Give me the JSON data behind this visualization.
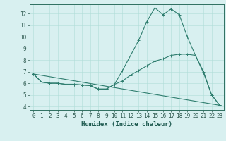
{
  "title": "",
  "xlabel": "Humidex (Indice chaleur)",
  "bg_color": "#d8f0f0",
  "line_color": "#2e7d6e",
  "xlim": [
    -0.5,
    23.5
  ],
  "ylim": [
    3.7,
    12.8
  ],
  "yticks": [
    4,
    5,
    6,
    7,
    8,
    9,
    10,
    11,
    12
  ],
  "xticks": [
    0,
    1,
    2,
    3,
    4,
    5,
    6,
    7,
    8,
    9,
    10,
    11,
    12,
    13,
    14,
    15,
    16,
    17,
    18,
    19,
    20,
    21,
    22,
    23
  ],
  "line1_x": [
    0,
    1,
    2,
    3,
    4,
    5,
    6,
    7,
    8,
    9,
    10,
    11,
    12,
    13,
    14,
    15,
    16,
    17,
    18,
    19,
    20,
    21,
    22,
    23
  ],
  "line1_y": [
    6.8,
    6.1,
    6.0,
    6.0,
    5.9,
    5.9,
    5.85,
    5.8,
    5.5,
    5.5,
    5.9,
    7.1,
    8.4,
    9.7,
    11.3,
    12.5,
    11.9,
    12.4,
    11.9,
    10.0,
    8.4,
    6.9,
    5.0,
    4.1
  ],
  "line2_x": [
    0,
    1,
    2,
    3,
    4,
    5,
    6,
    7,
    8,
    9,
    10,
    11,
    12,
    13,
    14,
    15,
    16,
    17,
    18,
    19,
    20,
    21,
    22,
    23
  ],
  "line2_y": [
    6.8,
    6.1,
    6.0,
    6.0,
    5.9,
    5.9,
    5.85,
    5.8,
    5.5,
    5.5,
    5.9,
    6.2,
    6.7,
    7.1,
    7.5,
    7.9,
    8.1,
    8.4,
    8.5,
    8.5,
    8.4,
    7.0,
    5.0,
    4.1
  ],
  "line3_x": [
    0,
    23
  ],
  "line3_y": [
    6.8,
    4.1
  ],
  "marker_size": 3,
  "lw": 0.8,
  "xlabel_fontsize": 6.5,
  "tick_fontsize": 5.5
}
